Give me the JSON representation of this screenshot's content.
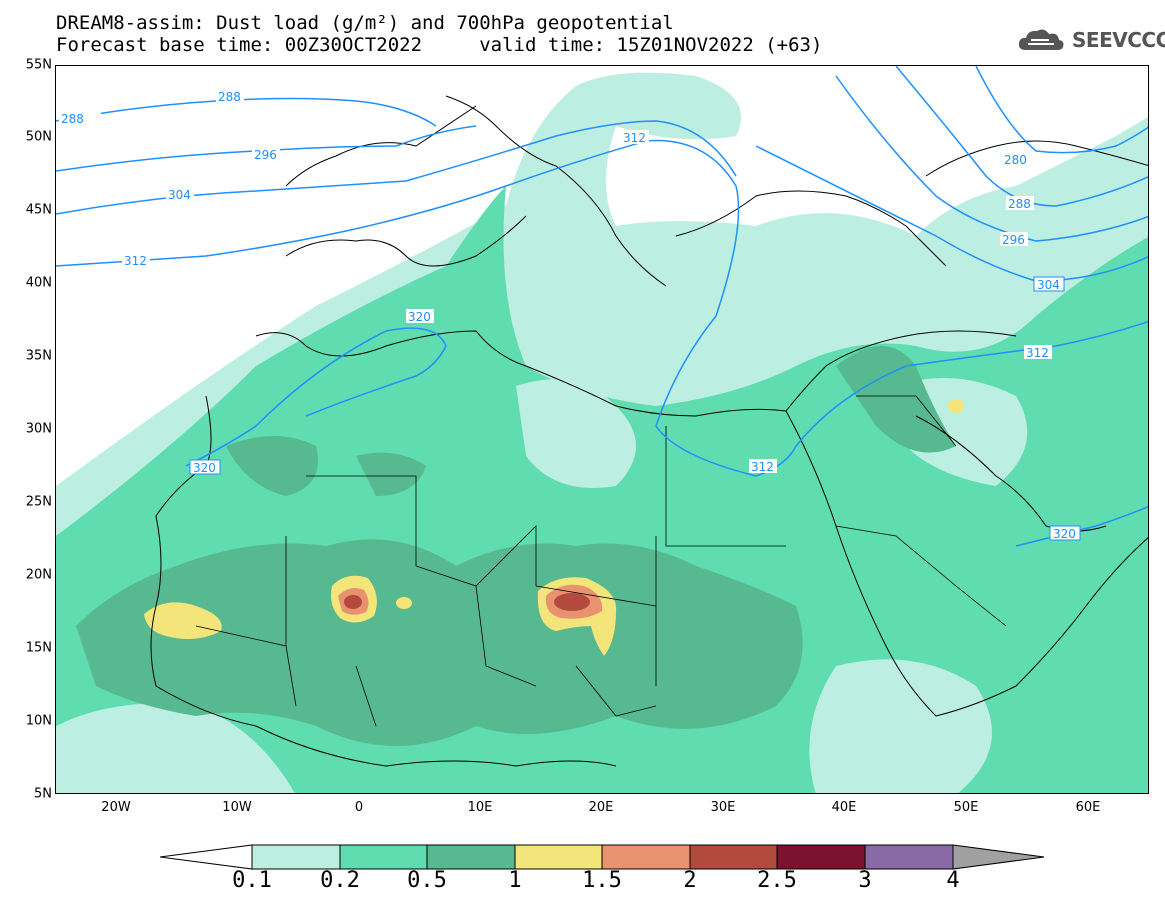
{
  "header": {
    "title_line1": "DREAM8-assim: Dust load (g/m²) and 700hPa geopotential",
    "title_line2": "Forecast base time: 00Z30OCT2022     valid time: 15Z01NOV2022 (+63)"
  },
  "logo": {
    "text": "SEEVCCC",
    "icon": "cloud-icon"
  },
  "map": {
    "lat_labels": [
      "55N",
      "50N",
      "45N",
      "40N",
      "35N",
      "30N",
      "25N",
      "20N",
      "15N",
      "10N",
      "5N"
    ],
    "lon_labels": [
      "20W",
      "10W",
      "0",
      "10E",
      "20E",
      "30E",
      "40E",
      "50E",
      "60E"
    ],
    "contours": {
      "c288": "288",
      "c2288": "288",
      "c296": "296",
      "c304": "304",
      "c312a": "312",
      "c312b": "312",
      "c320a": "320",
      "c320b": "320",
      "c312c": "312",
      "c312d": "312",
      "c320c": "320",
      "c280": "280",
      "c288e": "288",
      "c296e": "296",
      "c304e": "304"
    },
    "colors": {
      "dust_01": "#bdeee2",
      "dust_02": "#5fdcb0",
      "dust_05": "#56b98f",
      "dust_1": "#f3e57a",
      "dust_15": "#e99270",
      "dust_2": "#b24b3e",
      "dust_25": "#7d1230",
      "dust_3": "#8a6aa6",
      "dust_4": "#a0a0a0",
      "contour_line": "#1e90ff"
    }
  },
  "colorbar": {
    "labels": [
      "0.1",
      "0.2",
      "0.5",
      "1",
      "1.5",
      "2",
      "2.5",
      "3",
      "4"
    ],
    "colors": [
      "#bdeee2",
      "#5fdcb0",
      "#56b98f",
      "#f3e57a",
      "#e99270",
      "#b24b3e",
      "#7d1230",
      "#8a6aa6"
    ]
  }
}
